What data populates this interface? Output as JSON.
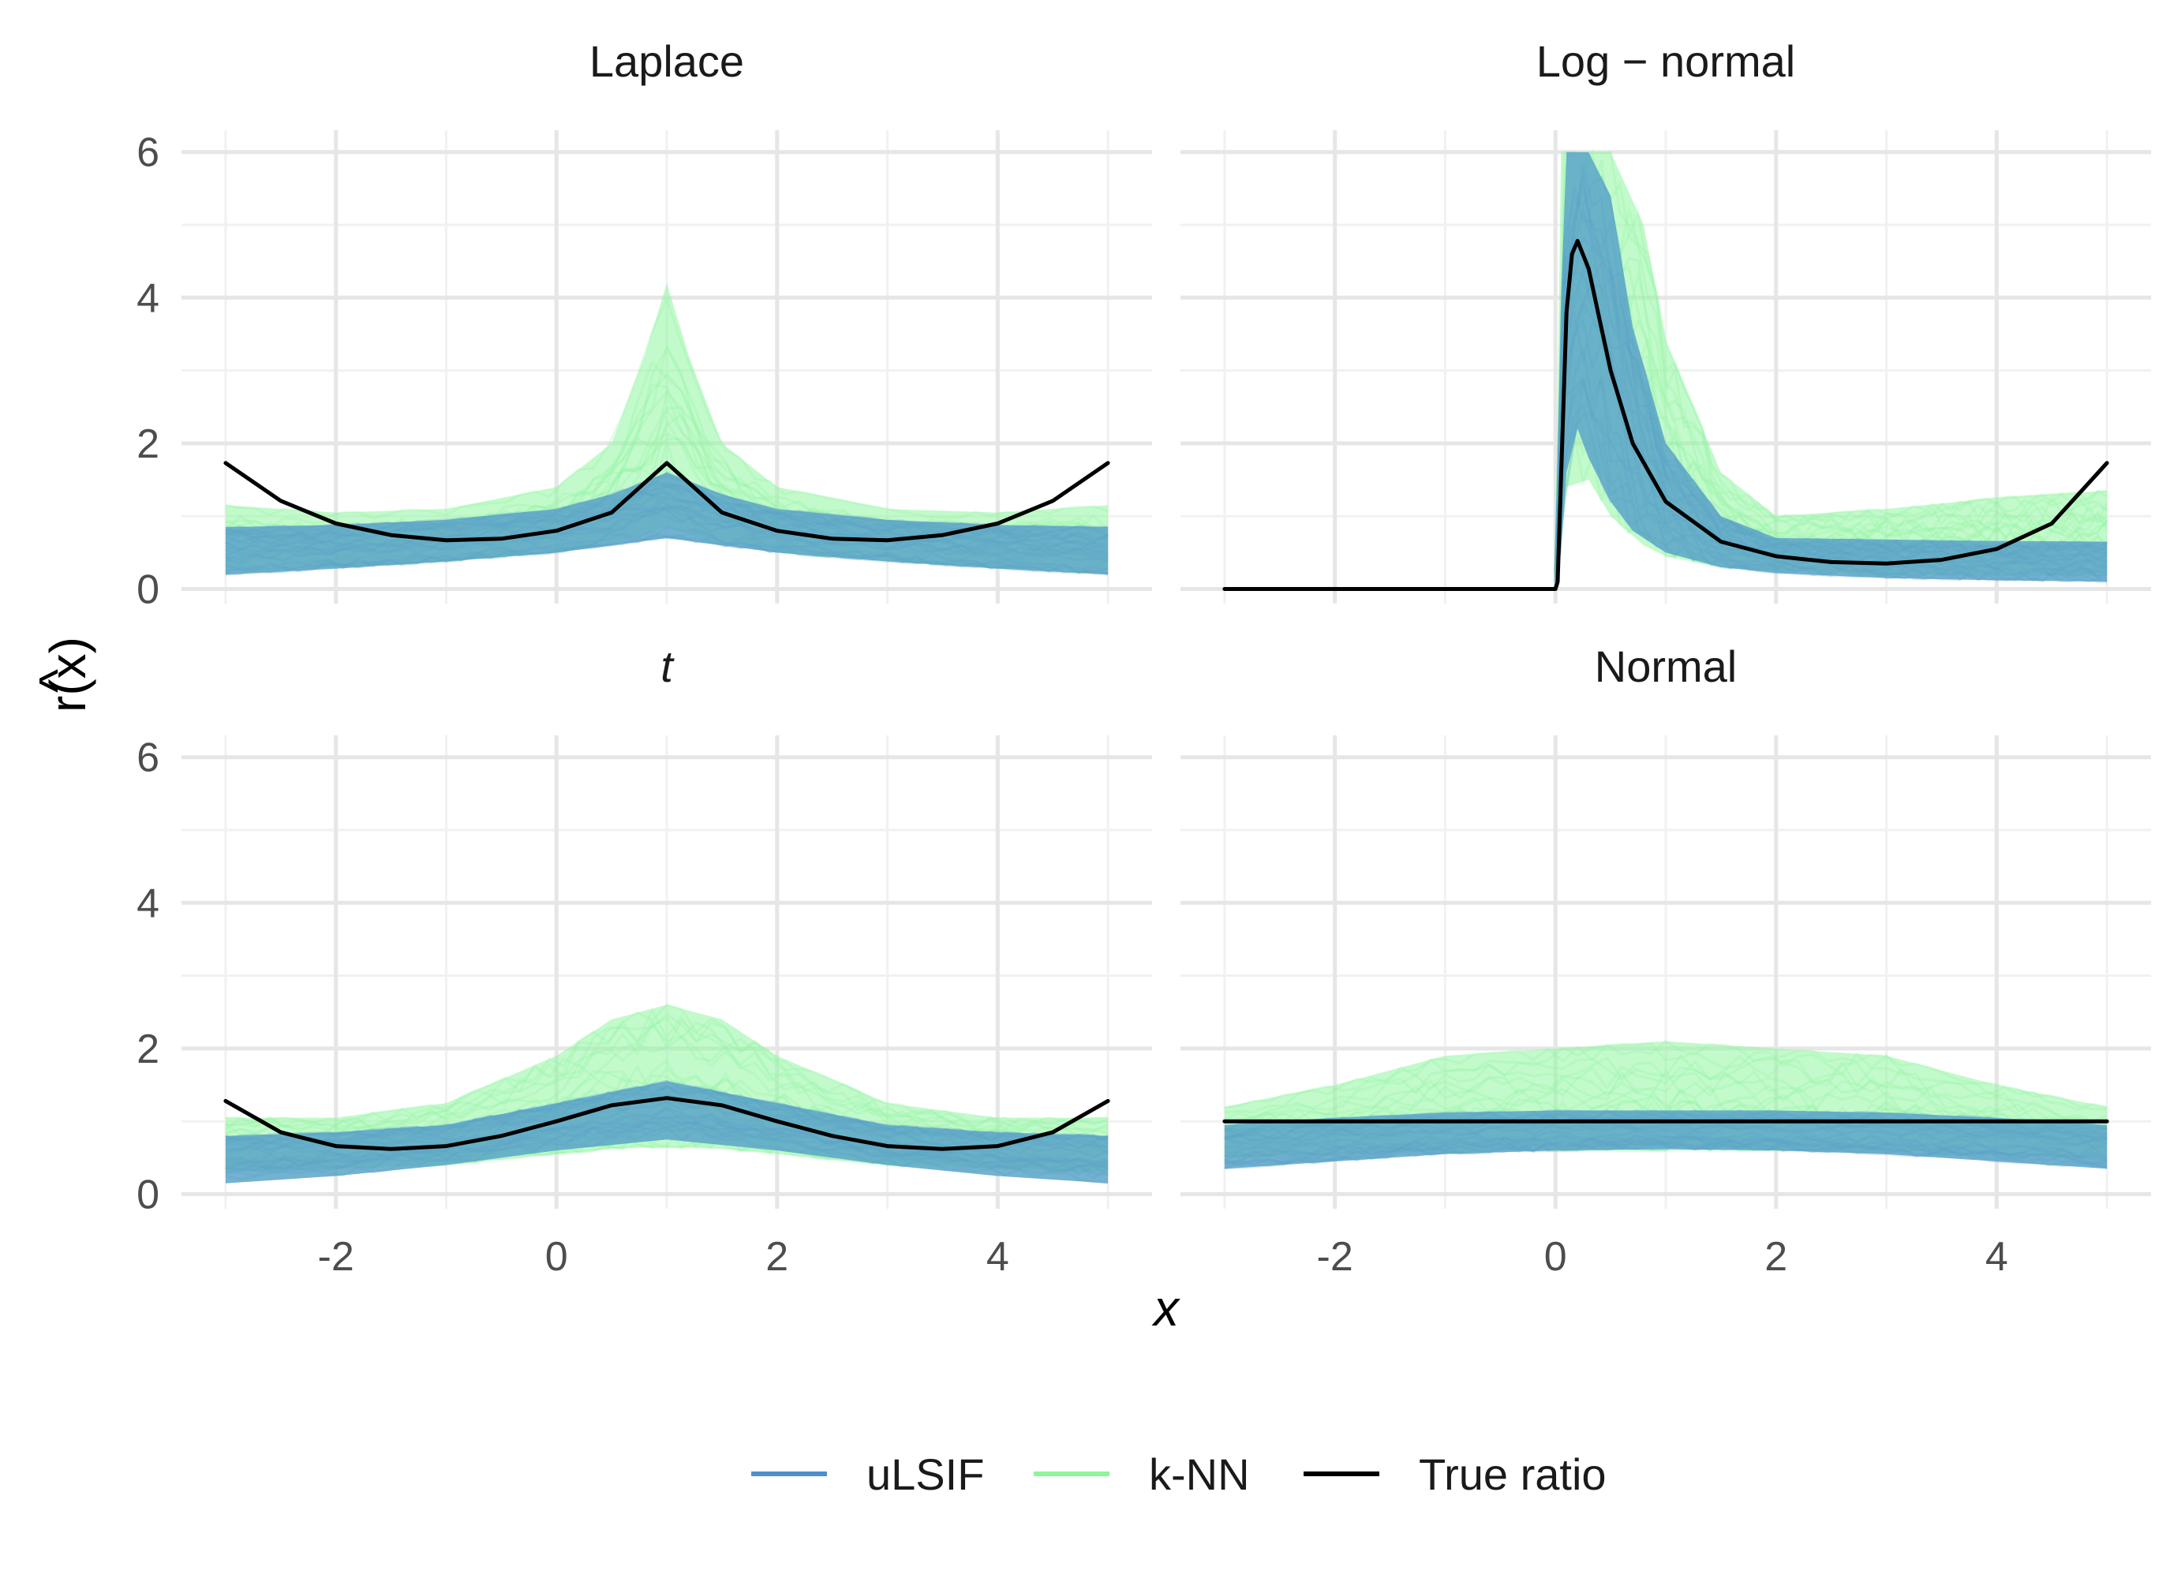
{
  "chart_data": {
    "type": "line",
    "xlabel": "x",
    "ylabel_hat": "^",
    "ylabel": "r(x)",
    "xlim": [
      -3.4,
      5.4
    ],
    "ylim": [
      -0.2,
      6.3
    ],
    "x_ticks": [
      -2,
      0,
      2,
      4
    ],
    "x_tick_labels": [
      "-2",
      "0",
      "2",
      "4"
    ],
    "y_ticks": [
      0,
      2,
      4,
      6
    ],
    "y_tick_labels": [
      "0",
      "2",
      "4",
      "6"
    ],
    "grid": true,
    "legend_position": "bottom",
    "legend": [
      {
        "label": "uLSIF",
        "color": "#4f8fcf"
      },
      {
        "label": "k-NN",
        "color": "#8ef59a"
      },
      {
        "label": "True ratio",
        "color": "#000000"
      }
    ],
    "colors": {
      "ulsif_band": "#5aa4c8",
      "knn_band": "#90f5a0",
      "true_ratio": "#000000"
    },
    "panels": [
      {
        "title": "Laplace",
        "true_ratio": {
          "x": [
            -3,
            -2.5,
            -2,
            -1.5,
            -1,
            -0.5,
            0,
            0.5,
            1,
            1.5,
            2,
            2.5,
            3,
            3.5,
            4,
            4.5,
            5
          ],
          "y": [
            1.73,
            1.21,
            0.9,
            0.74,
            0.67,
            0.69,
            0.8,
            1.05,
            1.73,
            1.05,
            0.8,
            0.69,
            0.67,
            0.74,
            0.9,
            1.21,
            1.73
          ]
        },
        "ulsif_band": {
          "x": [
            -3,
            -2,
            -1,
            0,
            0.5,
            1,
            1.5,
            2,
            3,
            4,
            5
          ],
          "lower": [
            0.2,
            0.28,
            0.38,
            0.5,
            0.6,
            0.7,
            0.6,
            0.5,
            0.38,
            0.28,
            0.2
          ],
          "upper": [
            0.85,
            0.88,
            0.95,
            1.1,
            1.3,
            1.6,
            1.3,
            1.1,
            0.95,
            0.88,
            0.85
          ]
        },
        "knn_band": {
          "x": [
            -3,
            -2,
            -1,
            0,
            0.5,
            0.8,
            1,
            1.2,
            1.5,
            2,
            3,
            4,
            5
          ],
          "lower": [
            0.25,
            0.3,
            0.38,
            0.5,
            0.62,
            0.75,
            0.85,
            0.75,
            0.62,
            0.5,
            0.38,
            0.3,
            0.25
          ],
          "upper": [
            1.15,
            1.05,
            1.1,
            1.4,
            2.0,
            3.2,
            4.2,
            3.2,
            2.0,
            1.4,
            1.1,
            1.05,
            1.15
          ]
        }
      },
      {
        "title": "Log − normal",
        "true_ratio": {
          "x": [
            -3,
            -2,
            -1,
            0,
            0.02,
            0.05,
            0.1,
            0.15,
            0.2,
            0.3,
            0.4,
            0.5,
            0.7,
            1,
            1.5,
            2,
            2.5,
            3,
            3.5,
            4,
            4.5,
            5
          ],
          "y": [
            0,
            0,
            0,
            0,
            0.1,
            1.5,
            3.8,
            4.6,
            4.78,
            4.4,
            3.7,
            3.0,
            2.0,
            1.2,
            0.65,
            0.45,
            0.37,
            0.35,
            0.4,
            0.55,
            0.9,
            1.73
          ]
        },
        "ulsif_band": {
          "x": [
            0,
            0.05,
            0.1,
            0.2,
            0.3,
            0.5,
            0.7,
            1,
            1.5,
            2,
            3,
            4,
            5
          ],
          "lower": [
            0,
            0.5,
            1.6,
            2.2,
            1.8,
            1.2,
            0.8,
            0.5,
            0.3,
            0.22,
            0.15,
            0.12,
            0.1
          ],
          "upper": [
            0.3,
            4.0,
            6.0,
            6.0,
            6.0,
            5.4,
            3.6,
            2.0,
            1.0,
            0.7,
            0.68,
            0.66,
            0.65
          ]
        },
        "knn_band": {
          "x": [
            0,
            0.05,
            0.1,
            0.3,
            0.5,
            0.8,
            1,
            1.5,
            2,
            3,
            4,
            5
          ],
          "lower": [
            0,
            0.6,
            1.4,
            1.5,
            1.0,
            0.6,
            0.45,
            0.3,
            0.25,
            0.2,
            0.18,
            0.18
          ],
          "upper": [
            0.3,
            6.0,
            6.0,
            6.0,
            6.0,
            5.0,
            3.4,
            1.6,
            1.0,
            1.1,
            1.25,
            1.35
          ]
        }
      },
      {
        "title": "t",
        "true_ratio": {
          "x": [
            -3,
            -2.5,
            -2,
            -1.5,
            -1,
            -0.5,
            0,
            0.5,
            1,
            1.5,
            2,
            2.5,
            3,
            3.5,
            4,
            4.5,
            5
          ],
          "y": [
            1.28,
            0.85,
            0.66,
            0.62,
            0.66,
            0.8,
            1.0,
            1.22,
            1.32,
            1.22,
            1.0,
            0.8,
            0.66,
            0.62,
            0.66,
            0.85,
            1.28
          ]
        },
        "ulsif_band": {
          "x": [
            -3,
            -2,
            -1,
            0,
            1,
            2,
            3,
            4,
            5
          ],
          "lower": [
            0.15,
            0.25,
            0.4,
            0.6,
            0.75,
            0.6,
            0.4,
            0.25,
            0.15
          ],
          "upper": [
            0.8,
            0.85,
            0.95,
            1.25,
            1.55,
            1.25,
            0.95,
            0.85,
            0.8
          ]
        },
        "knn_band": {
          "x": [
            -3,
            -2,
            -1,
            0,
            0.5,
            1,
            1.5,
            2,
            3,
            4,
            5
          ],
          "lower": [
            0.3,
            0.35,
            0.4,
            0.55,
            0.62,
            0.65,
            0.62,
            0.55,
            0.4,
            0.35,
            0.3
          ],
          "upper": [
            1.05,
            1.05,
            1.25,
            1.9,
            2.4,
            2.6,
            2.4,
            1.9,
            1.25,
            1.05,
            1.05
          ]
        }
      },
      {
        "title": "Normal",
        "true_ratio": {
          "x": [
            -3,
            5
          ],
          "y": [
            1,
            1
          ]
        },
        "ulsif_band": {
          "x": [
            -3,
            -2,
            -1,
            0,
            1,
            2,
            3,
            4,
            5
          ],
          "lower": [
            0.35,
            0.45,
            0.55,
            0.6,
            0.62,
            0.6,
            0.55,
            0.45,
            0.35
          ],
          "upper": [
            0.95,
            1.05,
            1.12,
            1.15,
            1.15,
            1.15,
            1.12,
            1.05,
            0.95
          ]
        },
        "knn_band": {
          "x": [
            -3,
            -2,
            -1,
            0,
            1,
            2,
            3,
            4,
            5
          ],
          "lower": [
            0.5,
            0.55,
            0.6,
            0.6,
            0.6,
            0.6,
            0.6,
            0.55,
            0.5
          ],
          "upper": [
            1.2,
            1.5,
            1.9,
            2.0,
            2.1,
            2.0,
            1.9,
            1.5,
            1.2
          ]
        }
      }
    ]
  }
}
